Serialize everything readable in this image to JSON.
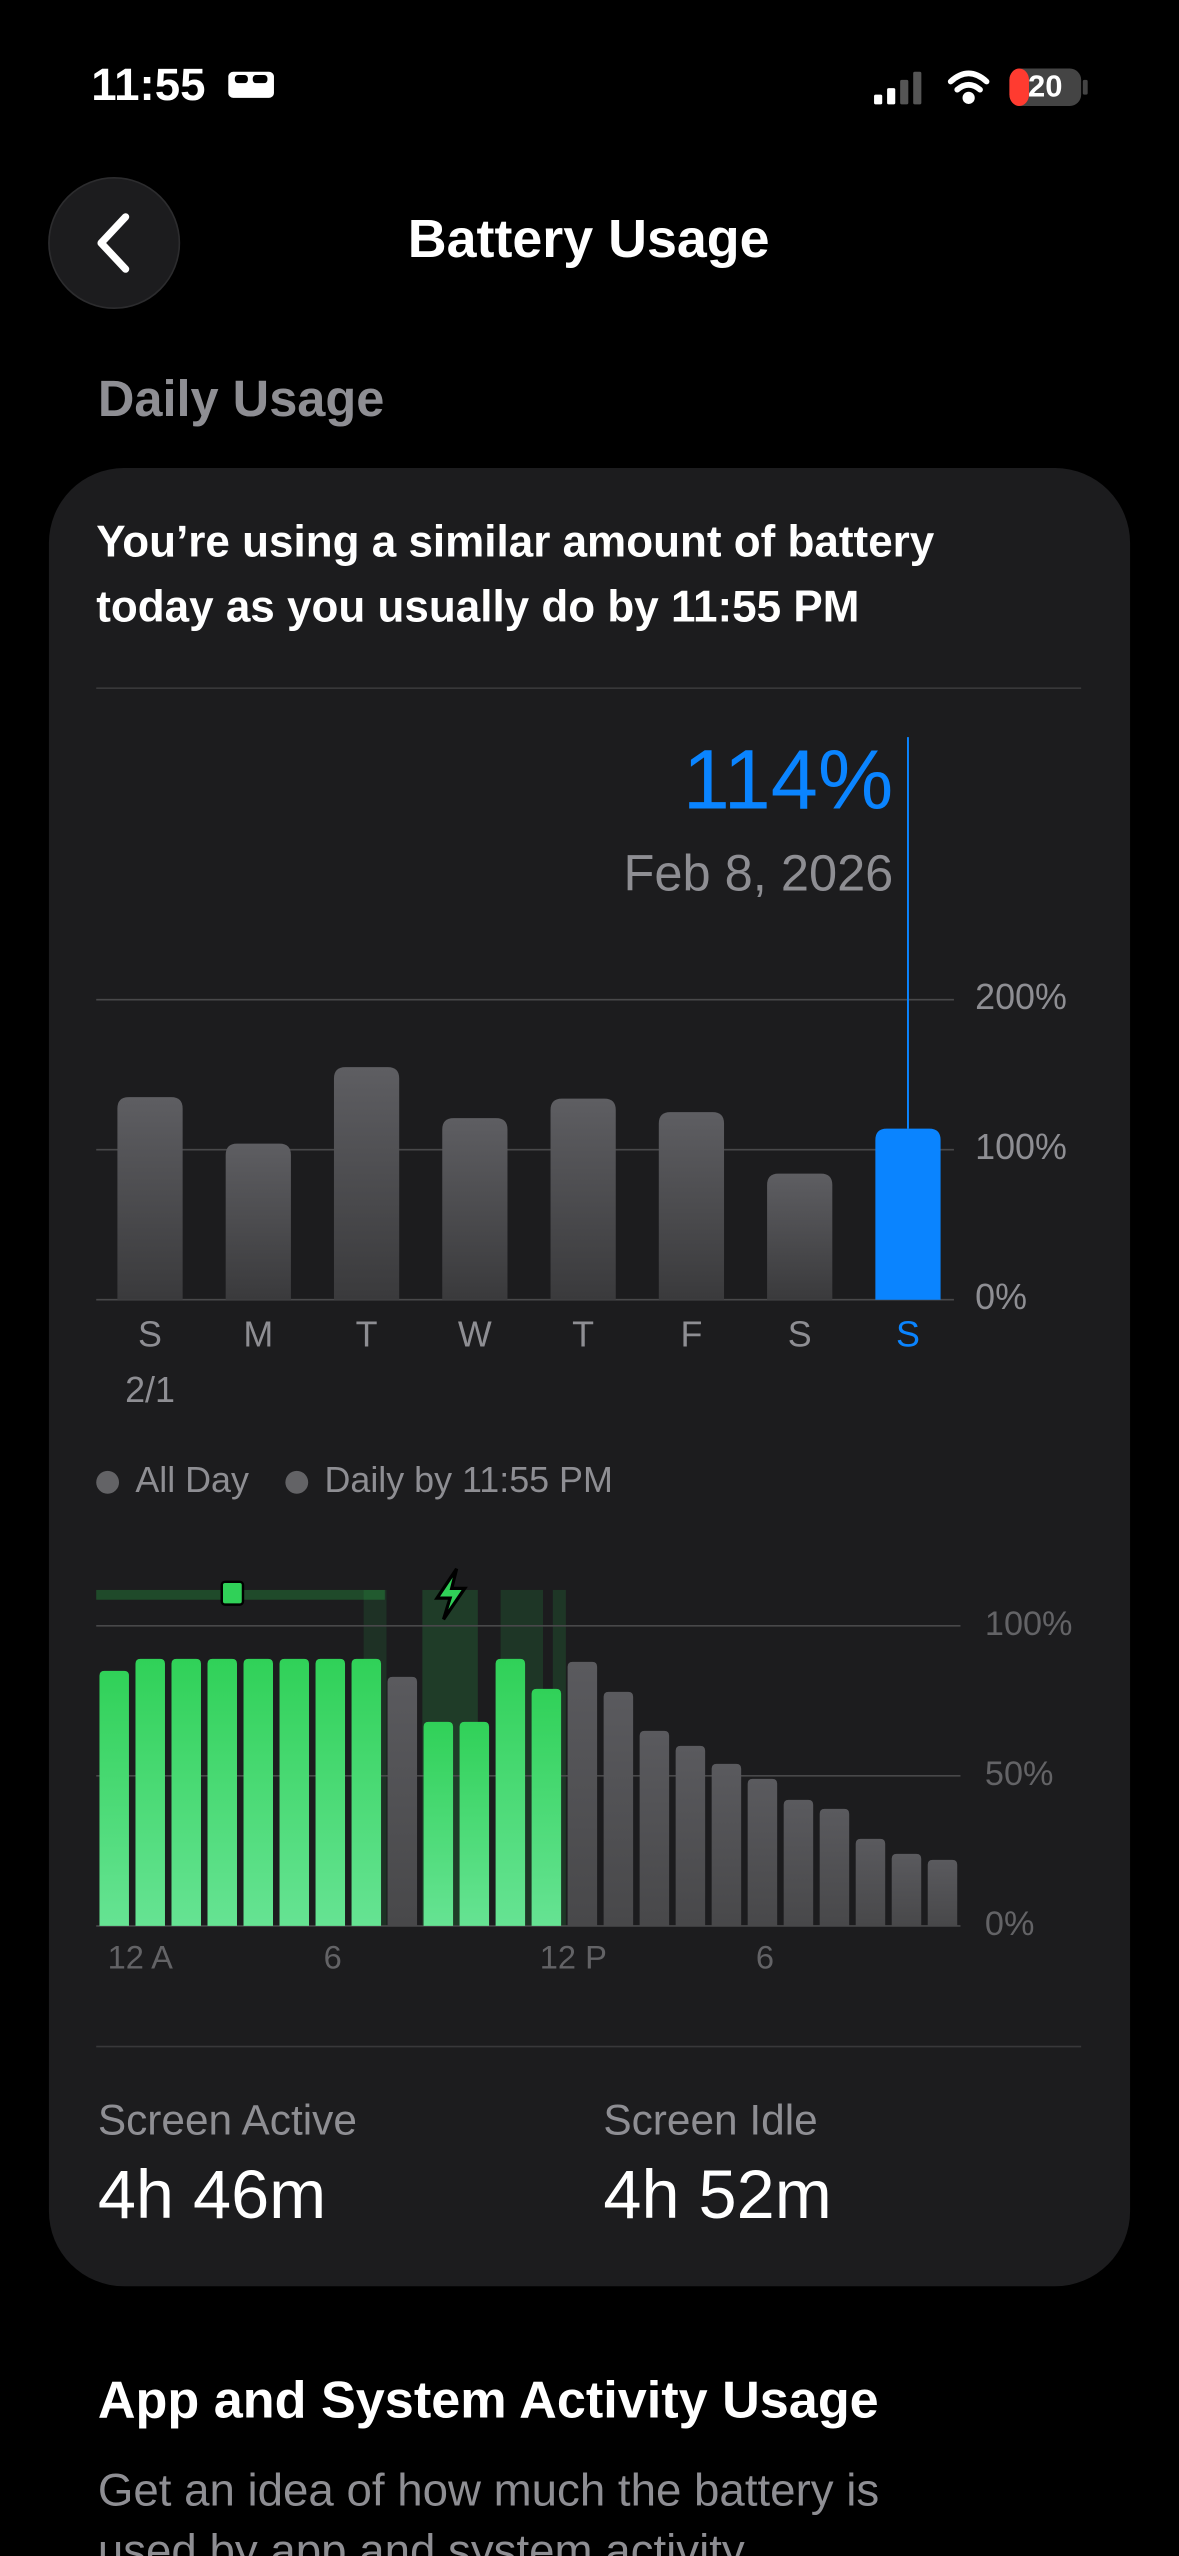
{
  "status_bar": {
    "time": "11:55",
    "battery": "20"
  },
  "header": {
    "title": "Battery Usage"
  },
  "section_title": "Daily Usage",
  "summary": [
    "You’re using a similar amount of battery",
    "today as you usually do by 11:55 PM"
  ],
  "chart_data": [
    {
      "type": "bar",
      "categories": [
        "S",
        "M",
        "T",
        "W",
        "T",
        "F",
        "S",
        "S"
      ],
      "sublabels": [
        "2/1",
        null,
        null,
        null,
        null,
        null,
        null,
        null
      ],
      "values": [
        135,
        104,
        155,
        121,
        134,
        125,
        84,
        114
      ],
      "value_labels": [
        null,
        null,
        null,
        null,
        null,
        null,
        null,
        "114%"
      ],
      "selected_date": "Feb 8, 2026",
      "colors": [
        "#636366",
        "#636366",
        "#636366",
        "#636366",
        "#636366",
        "#636366",
        "#636366",
        "#0a84ff"
      ],
      "ylim": [
        0,
        200
      ],
      "yticks": [
        {
          "value": 0,
          "label": "0%"
        },
        {
          "value": 100,
          "label": "100%"
        },
        {
          "value": 200,
          "label": "200%"
        }
      ],
      "grid": true,
      "legend": [
        "All Day",
        "Daily by 11:55 PM"
      ]
    },
    {
      "type": "bar",
      "categories": [
        "12 A",
        null,
        null,
        null,
        null,
        null,
        "6",
        null,
        null,
        null,
        null,
        null,
        "12 P",
        null,
        null,
        null,
        null,
        null,
        "6",
        null,
        null,
        null,
        null,
        null
      ],
      "values": [
        85,
        89,
        89,
        89,
        89,
        89,
        89,
        89,
        83,
        68,
        68,
        89,
        79,
        88,
        78,
        65,
        60,
        54,
        49,
        42,
        39,
        29,
        24,
        22
      ],
      "colors": [
        "#34c759",
        "#34c759",
        "#34c759",
        "#34c759",
        "#34c759",
        "#34c759",
        "#34c759",
        "#34c759",
        "#636366",
        "#34c759",
        "#34c759",
        "#34c759",
        "#34c759",
        "#636366",
        "#636366",
        "#636366",
        "#636366",
        "#636366",
        "#636366",
        "#636366",
        "#636366",
        "#636366",
        "#636366",
        "#636366"
      ],
      "ylim": [
        0,
        100
      ],
      "yticks": [
        {
          "value": 0,
          "label": "0%"
        },
        {
          "value": 50,
          "label": "50%"
        },
        {
          "value": 100,
          "label": "100%"
        }
      ],
      "grid": true
    }
  ],
  "stats": [
    {
      "label": "Screen Active",
      "value": "4h 46m"
    },
    {
      "label": "Screen Idle",
      "value": "4h 52m"
    }
  ],
  "activity": {
    "title": "App and System Activity Usage",
    "text": [
      "Get an idea of how much the battery is",
      "used by app and system activity."
    ]
  }
}
